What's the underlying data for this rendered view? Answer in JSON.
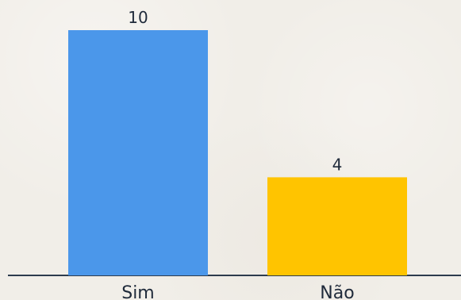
{
  "chart_data": {
    "type": "bar",
    "categories": [
      "Sim",
      "Não"
    ],
    "values": [
      10,
      4
    ],
    "colors": [
      "#4b97ea",
      "#ffc400"
    ],
    "title": "",
    "xlabel": "",
    "ylabel": "",
    "ylim": [
      0,
      10
    ],
    "grid": false,
    "legend": "none"
  }
}
